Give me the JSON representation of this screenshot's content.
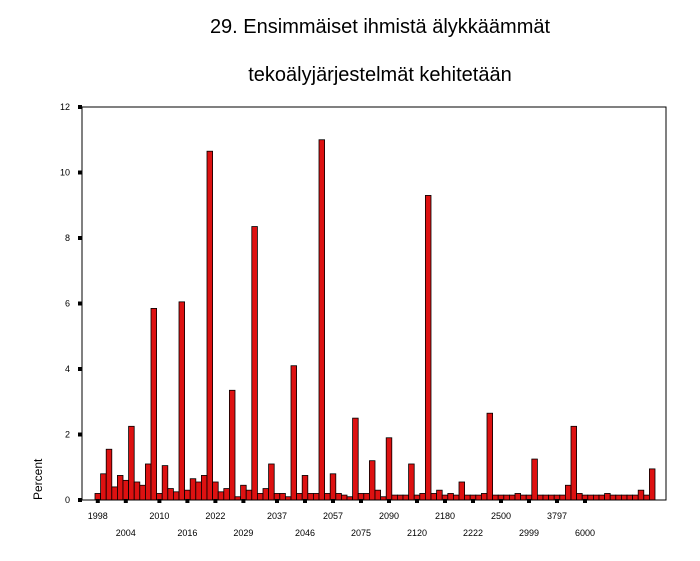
{
  "chart_data": {
    "type": "bar",
    "title_line1": "29. Ensimmäiset ihmistä älykkäämmät",
    "title_line2": "tekoälyjärjestelmät kehitetään",
    "xlabel": "",
    "ylabel": "Percent",
    "ylim": [
      0,
      12
    ],
    "yticks": [
      "0",
      "2",
      "4",
      "6",
      "8",
      "10",
      "12"
    ],
    "grid": false,
    "legend": "none",
    "bar_color": "#dd1111",
    "x_tick_labels_row1": [
      {
        "index": 0,
        "label": "1998"
      },
      {
        "index": 11,
        "label": "2010"
      },
      {
        "index": 21,
        "label": "2022"
      },
      {
        "index": 32,
        "label": "2037"
      },
      {
        "index": 42,
        "label": "2057"
      },
      {
        "index": 52,
        "label": "2090"
      },
      {
        "index": 62,
        "label": "2180"
      },
      {
        "index": 72,
        "label": "2500"
      },
      {
        "index": 82,
        "label": "3797"
      }
    ],
    "x_tick_labels_row2": [
      {
        "index": 5,
        "label": "2004"
      },
      {
        "index": 16,
        "label": "2016"
      },
      {
        "index": 26,
        "label": "2029"
      },
      {
        "index": 37,
        "label": "2046"
      },
      {
        "index": 47,
        "label": "2075"
      },
      {
        "index": 57,
        "label": "2120"
      },
      {
        "index": 67,
        "label": "2222"
      },
      {
        "index": 77,
        "label": "2999"
      },
      {
        "index": 87,
        "label": "6000"
      }
    ],
    "values": [
      0.2,
      0.8,
      1.55,
      0.4,
      0.75,
      0.6,
      2.25,
      0.55,
      0.45,
      1.1,
      5.85,
      0.2,
      1.05,
      0.35,
      0.25,
      6.05,
      0.3,
      0.65,
      0.55,
      0.75,
      10.65,
      0.55,
      0.25,
      0.35,
      3.35,
      0.1,
      0.45,
      0.3,
      8.35,
      0.2,
      0.35,
      1.1,
      0.2,
      0.2,
      0.1,
      4.1,
      0.2,
      0.75,
      0.2,
      0.2,
      11.0,
      0.2,
      0.8,
      0.2,
      0.15,
      0.1,
      2.5,
      0.2,
      0.2,
      1.2,
      0.3,
      0.1,
      1.9,
      0.15,
      0.15,
      0.15,
      1.1,
      0.15,
      0.2,
      9.3,
      0.2,
      0.3,
      0.15,
      0.2,
      0.15,
      0.55,
      0.15,
      0.15,
      0.15,
      0.2,
      2.65,
      0.15,
      0.15,
      0.15,
      0.15,
      0.2,
      0.15,
      0.15,
      1.25,
      0.15,
      0.15,
      0.15,
      0.15,
      0.15,
      0.45,
      2.25,
      0.2,
      0.15,
      0.15,
      0.15,
      0.15,
      0.2,
      0.15,
      0.15,
      0.15,
      0.15,
      0.15,
      0.3,
      0.15,
      0.95
    ]
  }
}
